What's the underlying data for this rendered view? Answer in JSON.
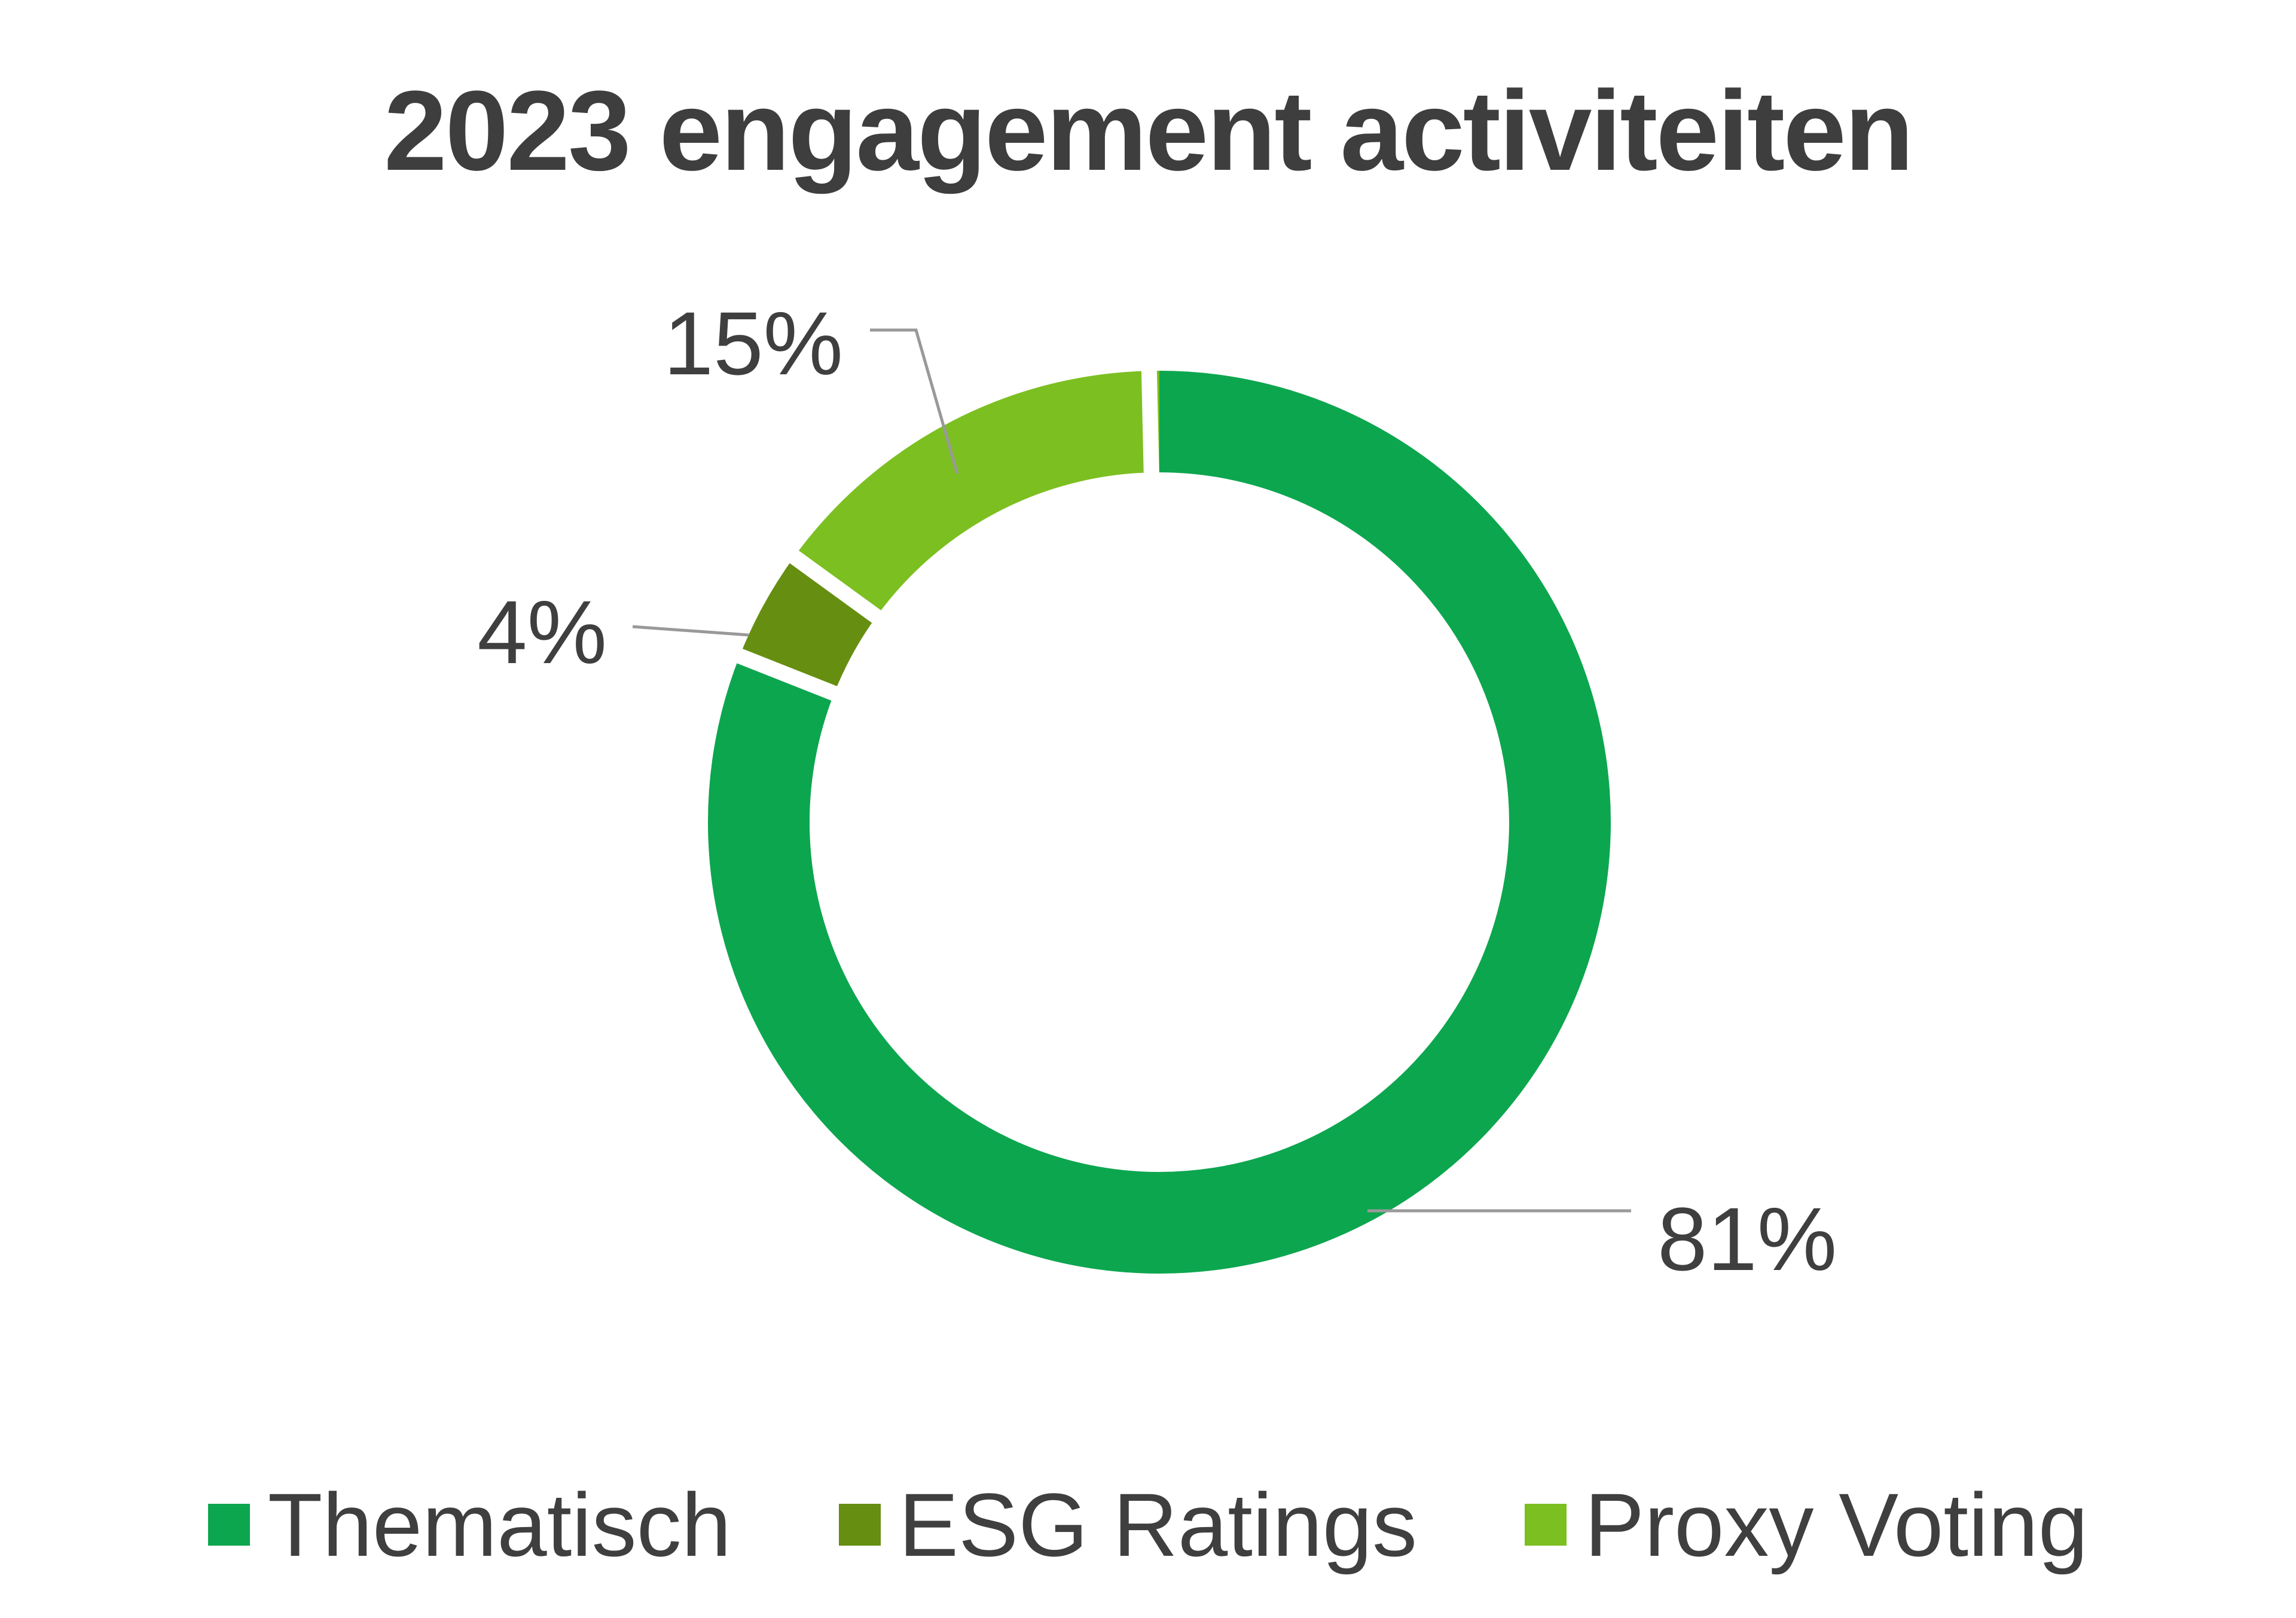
{
  "title": "2023 engagement activiteiten",
  "chart_data": {
    "type": "pie",
    "subtype": "donut",
    "title": "2023 engagement activiteiten",
    "categories": [
      "Thematisch",
      "ESG Ratings",
      "Proxy Voting"
    ],
    "values": [
      81,
      4,
      15
    ],
    "unit": "%",
    "data_labels": [
      "81%",
      "4%",
      "15%"
    ],
    "colors": [
      "#0ca64f",
      "#668e10",
      "#7cbf21"
    ],
    "start_angle_deg": 0,
    "direction": "clockwise",
    "donut_hole_ratio": 0.775,
    "legend_position": "bottom",
    "separator_color": "#ffffff",
    "grid": false
  },
  "labels": {
    "thematisch": "81%",
    "esg_ratings": "4%",
    "proxy_voting": "15%"
  },
  "legend": {
    "items": [
      {
        "label": "Thematisch",
        "color": "#0ca64f"
      },
      {
        "label": "ESG Ratings",
        "color": "#668e10"
      },
      {
        "label": "Proxy Voting",
        "color": "#7cbf21"
      }
    ]
  },
  "style_colors": {
    "text": "#3f3f3f",
    "leader_line": "#999999",
    "background": "#ffffff"
  }
}
